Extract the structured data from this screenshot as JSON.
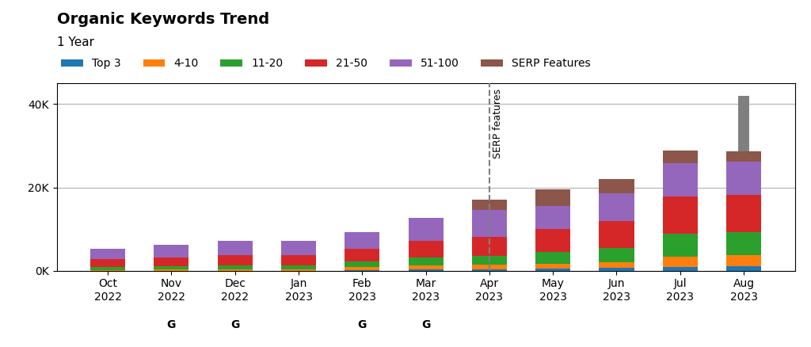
{
  "chart_data": {
    "type": "bar",
    "stacked": true,
    "title": "Organic Keywords Trend",
    "subtitle": "1 Year",
    "categories": [
      "Oct\n2022",
      "Nov\n2022",
      "Dec\n2022",
      "Jan\n2023",
      "Feb\n2023",
      "Mar\n2023",
      "Apr\n2023",
      "May\n2023",
      "Jun\n2023",
      "Jul\n2023",
      "Aug\n2023"
    ],
    "series": [
      {
        "name": "Top 3",
        "values": [
          0,
          0,
          0,
          0,
          200,
          300,
          400,
          500,
          600,
          900,
          1100
        ]
      },
      {
        "name": "4-10",
        "values": [
          200,
          250,
          350,
          350,
          600,
          900,
          1000,
          1200,
          1400,
          2500,
          2600
        ]
      },
      {
        "name": "11-20",
        "values": [
          700,
          800,
          900,
          900,
          1500,
          2000,
          2200,
          2800,
          3500,
          5500,
          5500
        ]
      },
      {
        "name": "21-50",
        "values": [
          1800,
          2100,
          2400,
          2500,
          3000,
          4000,
          4500,
          5500,
          6500,
          9000,
          9000
        ]
      },
      {
        "name": "51-100",
        "values": [
          2500,
          3000,
          3500,
          3500,
          4000,
          5500,
          6500,
          5500,
          6500,
          8000,
          8000
        ]
      },
      {
        "name": "SERP Features",
        "values": [
          0,
          0,
          0,
          0,
          0,
          0,
          2500,
          4000,
          3500,
          3000,
          2500
        ]
      }
    ],
    "ylim": [
      0,
      45000
    ],
    "yticks": [
      {
        "value": 0,
        "label": "0K"
      },
      {
        "value": 20000,
        "label": "20K"
      },
      {
        "value": 40000,
        "label": "40K"
      }
    ],
    "grid": "y",
    "legend": "upper left",
    "annotations": [
      {
        "text": "SERP features",
        "x": "Apr\n2023",
        "line_style": "dashed"
      },
      {
        "text": "G",
        "x": "Nov\n2022"
      },
      {
        "text": "G",
        "x": "Dec\n2022"
      },
      {
        "text": "G",
        "x": "Feb\n2023"
      },
      {
        "text": "G",
        "x": "Mar\n2023"
      }
    ],
    "range_bar": {
      "x": "Aug\n2023",
      "values": [
        22960,
        42000
      ]
    }
  }
}
